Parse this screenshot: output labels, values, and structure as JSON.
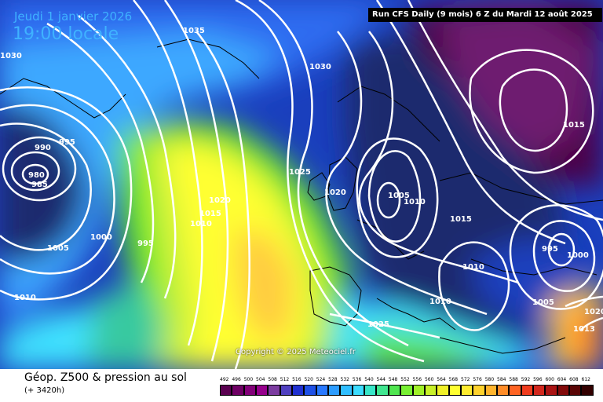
{
  "header": {
    "date": "Jeudi 1 janvier 2026",
    "time": "19:00 locale",
    "run_info": "Run CFS Daily (9 mois) 6 Z du Mardi 12 août 2025"
  },
  "footer": {
    "variable_title": "Géop. Z500 & pression au sol",
    "lead_time": "(+ 3420h)",
    "copyright": "Copyright © 2025 Meteociel.fr"
  },
  "map": {
    "field": "Z500 geopotential (dam) with sea-level pressure isobars (hPa)",
    "isobar_labels": [
      "1035",
      "1030",
      "1030",
      "1025",
      "1020",
      "1020",
      "1015",
      "1010",
      "1005",
      "1010",
      "1015",
      "1020",
      "1010",
      "1005",
      "1000",
      "995",
      "990",
      "985",
      "980",
      "995",
      "1000",
      "995",
      "1005",
      "1015",
      "1010",
      "1025",
      "1020",
      "1013",
      "1010",
      "1015"
    ],
    "highs": [
      "1035",
      "1030"
    ],
    "lows": [
      "980",
      "995",
      "1005",
      "1015"
    ],
    "colors": {
      "deep_purple": "#4b0045",
      "purple": "#6e1f70",
      "navy": "#1c2a6e",
      "blue": "#1a3fbd",
      "mid_blue": "#2d6cf0",
      "light_blue": "#3ea8ff",
      "cyan": "#3fe2ff",
      "teal": "#37c9a0",
      "green": "#5ee62a",
      "yellow_green": "#c8f23a",
      "yellow": "#ffff30",
      "light_orange": "#ffcc40",
      "land_line": "#000000",
      "isobar": "#ffffff"
    }
  },
  "legend": {
    "values": [
      "492",
      "496",
      "500",
      "504",
      "508",
      "512",
      "516",
      "520",
      "524",
      "528",
      "532",
      "536",
      "540",
      "544",
      "548",
      "552",
      "556",
      "560",
      "564",
      "568",
      "572",
      "576",
      "580",
      "584",
      "588",
      "592",
      "596",
      "600",
      "604",
      "608",
      "612"
    ],
    "colors": [
      "#5a0050",
      "#6e0064",
      "#820078",
      "#96008c",
      "#7c3ca0",
      "#5040c0",
      "#2030d0",
      "#1e50e6",
      "#2878ff",
      "#2c9cff",
      "#30beff",
      "#3cdcff",
      "#38e6c8",
      "#40e690",
      "#50e650",
      "#78f032",
      "#a0f028",
      "#c8f028",
      "#f0f028",
      "#ffff30",
      "#ffec30",
      "#ffd22d",
      "#ffb42d",
      "#ff8c28",
      "#ff6423",
      "#f03c1e",
      "#d2281e",
      "#aa1414",
      "#820a0a",
      "#5a0505",
      "#320000"
    ]
  }
}
